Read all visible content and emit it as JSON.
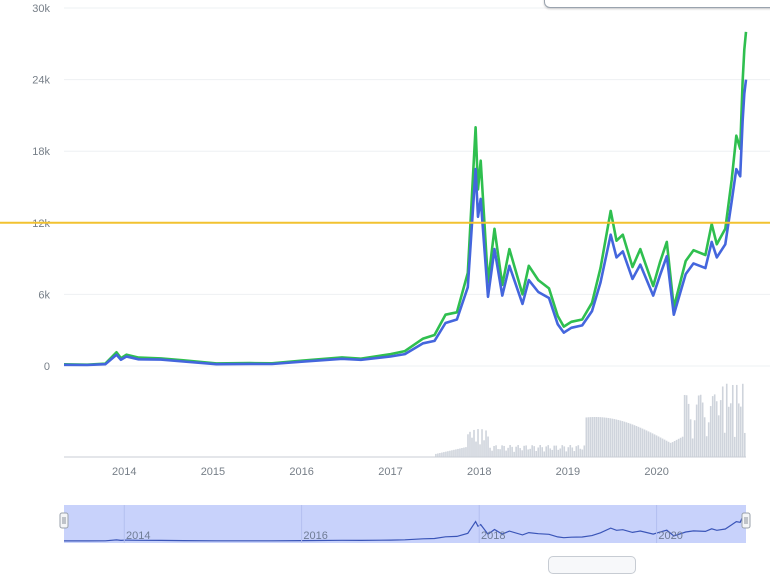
{
  "chart_data": {
    "type": "line",
    "title": "",
    "xlabel": "",
    "ylabel": "",
    "x_range": [
      "2013-04-28",
      "2021-01-03"
    ],
    "ylim": [
      0,
      30000
    ],
    "y_ticks": [
      {
        "value": 0,
        "label": "0"
      },
      {
        "value": 6000,
        "label": "6k"
      },
      {
        "value": 12000,
        "label": "12k"
      },
      {
        "value": 18000,
        "label": "18k"
      },
      {
        "value": 24000,
        "label": "24k"
      },
      {
        "value": 30000,
        "label": "30k"
      }
    ],
    "x_ticks": [
      "2014",
      "2015",
      "2016",
      "2017",
      "2018",
      "2019",
      "2020"
    ],
    "navigator_ticks": [
      "2014",
      "2016",
      "2018",
      "2020"
    ],
    "grid": true,
    "legend": "none",
    "reference_line": {
      "value": 12000,
      "color": "#f2c230"
    },
    "series": [
      {
        "color": "#2fbf4f",
        "points": [
          [
            "2013-04-28",
            140
          ],
          [
            "2013-08-01",
            110
          ],
          [
            "2013-10-15",
            190
          ],
          [
            "2013-11-30",
            1150
          ],
          [
            "2013-12-18",
            650
          ],
          [
            "2014-01-10",
            950
          ],
          [
            "2014-03-01",
            700
          ],
          [
            "2014-06-01",
            640
          ],
          [
            "2014-09-01",
            480
          ],
          [
            "2015-01-15",
            220
          ],
          [
            "2015-06-01",
            240
          ],
          [
            "2015-09-01",
            230
          ],
          [
            "2016-01-01",
            440
          ],
          [
            "2016-06-15",
            720
          ],
          [
            "2016-09-01",
            610
          ],
          [
            "2017-01-01",
            1000
          ],
          [
            "2017-03-01",
            1250
          ],
          [
            "2017-05-15",
            2300
          ],
          [
            "2017-07-01",
            2600
          ],
          [
            "2017-08-15",
            4300
          ],
          [
            "2017-10-01",
            4500
          ],
          [
            "2017-11-15",
            7800
          ],
          [
            "2017-12-17",
            20000
          ],
          [
            "2017-12-27",
            14800
          ],
          [
            "2018-01-07",
            17200
          ],
          [
            "2018-02-06",
            7000
          ],
          [
            "2018-03-05",
            11500
          ],
          [
            "2018-04-06",
            6800
          ],
          [
            "2018-05-05",
            9800
          ],
          [
            "2018-06-28",
            6000
          ],
          [
            "2018-07-24",
            8400
          ],
          [
            "2018-09-01",
            7200
          ],
          [
            "2018-10-15",
            6500
          ],
          [
            "2018-11-20",
            4200
          ],
          [
            "2018-12-15",
            3300
          ],
          [
            "2019-01-15",
            3700
          ],
          [
            "2019-03-01",
            3900
          ],
          [
            "2019-04-10",
            5300
          ],
          [
            "2019-05-15",
            8200
          ],
          [
            "2019-06-26",
            13000
          ],
          [
            "2019-07-20",
            10500
          ],
          [
            "2019-08-15",
            11000
          ],
          [
            "2019-09-24",
            8300
          ],
          [
            "2019-10-26",
            9800
          ],
          [
            "2019-12-18",
            6700
          ],
          [
            "2020-01-15",
            8700
          ],
          [
            "2020-02-12",
            10400
          ],
          [
            "2020-03-12",
            4900
          ],
          [
            "2020-04-30",
            8800
          ],
          [
            "2020-06-01",
            9700
          ],
          [
            "2020-07-20",
            9300
          ],
          [
            "2020-08-15",
            11900
          ],
          [
            "2020-09-05",
            10200
          ],
          [
            "2020-10-10",
            11500
          ],
          [
            "2020-11-05",
            15600
          ],
          [
            "2020-11-24",
            19300
          ],
          [
            "2020-12-10",
            18200
          ],
          [
            "2020-12-20",
            23800
          ],
          [
            "2020-12-27",
            26500
          ],
          [
            "2021-01-03",
            28000
          ]
        ]
      },
      {
        "color": "#4466dd",
        "points": [
          [
            "2013-04-28",
            100
          ],
          [
            "2013-08-01",
            80
          ],
          [
            "2013-10-15",
            150
          ],
          [
            "2013-11-30",
            950
          ],
          [
            "2013-12-18",
            520
          ],
          [
            "2014-01-10",
            800
          ],
          [
            "2014-03-01",
            560
          ],
          [
            "2014-06-01",
            540
          ],
          [
            "2014-09-01",
            380
          ],
          [
            "2015-01-15",
            150
          ],
          [
            "2015-06-01",
            180
          ],
          [
            "2015-09-01",
            170
          ],
          [
            "2016-01-01",
            360
          ],
          [
            "2016-06-15",
            600
          ],
          [
            "2016-09-01",
            520
          ],
          [
            "2017-01-01",
            800
          ],
          [
            "2017-03-01",
            1000
          ],
          [
            "2017-05-15",
            1900
          ],
          [
            "2017-07-01",
            2100
          ],
          [
            "2017-08-15",
            3600
          ],
          [
            "2017-10-01",
            3900
          ],
          [
            "2017-11-15",
            6600
          ],
          [
            "2017-12-17",
            16500
          ],
          [
            "2017-12-27",
            12500
          ],
          [
            "2018-01-07",
            14000
          ],
          [
            "2018-02-06",
            5800
          ],
          [
            "2018-03-05",
            9800
          ],
          [
            "2018-04-06",
            5900
          ],
          [
            "2018-05-05",
            8400
          ],
          [
            "2018-06-28",
            5200
          ],
          [
            "2018-07-24",
            7200
          ],
          [
            "2018-09-01",
            6200
          ],
          [
            "2018-10-15",
            5700
          ],
          [
            "2018-11-20",
            3500
          ],
          [
            "2018-12-15",
            2800
          ],
          [
            "2019-01-15",
            3200
          ],
          [
            "2019-03-01",
            3400
          ],
          [
            "2019-04-10",
            4600
          ],
          [
            "2019-05-15",
            7000
          ],
          [
            "2019-06-26",
            11000
          ],
          [
            "2019-07-20",
            9100
          ],
          [
            "2019-08-15",
            9600
          ],
          [
            "2019-09-24",
            7300
          ],
          [
            "2019-10-26",
            8500
          ],
          [
            "2019-12-18",
            5900
          ],
          [
            "2020-01-15",
            7600
          ],
          [
            "2020-02-12",
            9200
          ],
          [
            "2020-03-12",
            4300
          ],
          [
            "2020-04-30",
            7700
          ],
          [
            "2020-06-01",
            8600
          ],
          [
            "2020-07-20",
            8200
          ],
          [
            "2020-08-15",
            10400
          ],
          [
            "2020-09-05",
            9100
          ],
          [
            "2020-10-10",
            10200
          ],
          [
            "2020-11-05",
            13800
          ],
          [
            "2020-11-24",
            16500
          ],
          [
            "2020-12-10",
            15900
          ],
          [
            "2020-12-20",
            20500
          ],
          [
            "2020-12-27",
            22800
          ],
          [
            "2021-01-03",
            24000
          ]
        ]
      }
    ]
  }
}
